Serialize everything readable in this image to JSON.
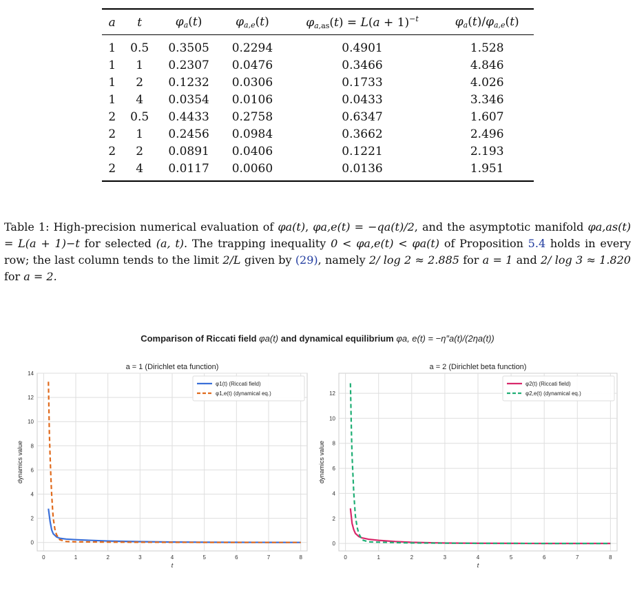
{
  "table": {
    "headers": [
      "a",
      "t",
      "φa(t)",
      "φa,e(t)",
      "φa,as(t) = L(a + 1)−t",
      "φa(t)/φa,e(t)"
    ],
    "rows": [
      [
        "1",
        "0.5",
        "0.3505",
        "0.2294",
        "0.4901",
        "1.528"
      ],
      [
        "1",
        "1",
        "0.2307",
        "0.0476",
        "0.3466",
        "4.846"
      ],
      [
        "1",
        "2",
        "0.1232",
        "0.0306",
        "0.1733",
        "4.026"
      ],
      [
        "1",
        "4",
        "0.0354",
        "0.0106",
        "0.0433",
        "3.346"
      ],
      [
        "2",
        "0.5",
        "0.4433",
        "0.2758",
        "0.6347",
        "1.607"
      ],
      [
        "2",
        "1",
        "0.2456",
        "0.0984",
        "0.3662",
        "2.496"
      ],
      [
        "2",
        "2",
        "0.0891",
        "0.0406",
        "0.1221",
        "2.193"
      ],
      [
        "2",
        "4",
        "0.0117",
        "0.0060",
        "0.0136",
        "1.951"
      ]
    ]
  },
  "caption": {
    "label": "Table 1:",
    "text_1": "High-precision numerical evaluation of",
    "text_2": ", and the asymptotic manifold",
    "text_3": "for selected",
    "text_4": ". The trapping inequality",
    "text_5": "of Proposition",
    "prop_ref": "5.4",
    "text_6": "holds in every row; the last column tends to the limit",
    "text_7": "given by",
    "eq_ref": "(29)",
    "text_8": ", namely",
    "text_9": "for",
    "text_10": "and",
    "text_11": "for",
    "m_phi_a": "φa(t)",
    "m_phi_ae": "φa,e(t) = −qa(t)/2",
    "m_manifold": "φa,as(t) = L(a + 1)−t",
    "m_at": "(a, t)",
    "m_ineq": "0 < φa,e(t) < φa(t)",
    "m_limit": "2/L",
    "m_val1": "2/ log 2 ≈ 2.885",
    "m_a1": "a = 1",
    "m_val2": "2/ log 3 ≈ 1.820",
    "m_a2": "a = 2."
  },
  "figure": {
    "title_prefix": "Comparison of Riccati field",
    "title_mid": "and dynamical equilibrium",
    "title_phi": "φa(t)",
    "title_eq": "φa, e(t) = −η″a(t)/(2ηa(t))"
  },
  "chart_data": [
    {
      "type": "line",
      "title": "a = 1 (Dirichlet eta function)",
      "xlabel": "t",
      "ylabel": "dynamics value",
      "xlim": [
        -0.2,
        8.2
      ],
      "ylim": [
        -0.7,
        14
      ],
      "xticks": [
        0,
        1,
        2,
        3,
        4,
        5,
        6,
        7,
        8
      ],
      "yticks": [
        0,
        2,
        4,
        6,
        8,
        10,
        12,
        14
      ],
      "grid": true,
      "legend_position": "top-right",
      "series": [
        {
          "name": "φ1(t) (Riccati field)",
          "color": "#3a6fd8",
          "style": "solid",
          "x": [
            0.15,
            0.2,
            0.25,
            0.3,
            0.4,
            0.5,
            0.7,
            1,
            1.5,
            2,
            3,
            4,
            5,
            6,
            7,
            8
          ],
          "y": [
            2.8,
            1.75,
            1.05,
            0.72,
            0.46,
            0.35,
            0.28,
            0.23,
            0.17,
            0.12,
            0.07,
            0.035,
            0.02,
            0.01,
            0.006,
            0.003
          ]
        },
        {
          "name": "φ1,e(t) (dynamical eq.)",
          "color": "#e06a1c",
          "style": "dashed",
          "x": [
            0.15,
            0.18,
            0.2,
            0.23,
            0.25,
            0.28,
            0.3,
            0.35,
            0.4,
            0.5,
            0.7,
            1,
            2,
            3,
            4,
            5,
            6,
            7,
            8
          ],
          "y": [
            13.3,
            9.0,
            7.2,
            5.1,
            4.0,
            2.7,
            2.0,
            1.1,
            0.65,
            0.23,
            0.08,
            0.05,
            0.03,
            0.02,
            0.01,
            0.006,
            0.004,
            0.002,
            0.001
          ]
        }
      ]
    },
    {
      "type": "line",
      "title": "a = 2 (Dirichlet beta function)",
      "xlabel": "t",
      "ylabel": "dynamics value",
      "xlim": [
        -0.2,
        8.2
      ],
      "ylim": [
        -0.6,
        13.6
      ],
      "xticks": [
        0,
        1,
        2,
        3,
        4,
        5,
        6,
        7,
        8
      ],
      "yticks": [
        0,
        2,
        4,
        6,
        8,
        10,
        12
      ],
      "grid": true,
      "legend_position": "top-right",
      "series": [
        {
          "name": "φ2(t) (Riccati field)",
          "color": "#d8286a",
          "style": "solid",
          "x": [
            0.15,
            0.2,
            0.25,
            0.3,
            0.4,
            0.5,
            0.7,
            1,
            1.5,
            2,
            3,
            4,
            5,
            6,
            7,
            8
          ],
          "y": [
            2.8,
            1.6,
            1.1,
            0.8,
            0.55,
            0.44,
            0.33,
            0.25,
            0.15,
            0.09,
            0.035,
            0.012,
            0.005,
            0.002,
            0.001,
            0.0005
          ]
        },
        {
          "name": "φ2,e(t) (dynamical eq.)",
          "color": "#1fae74",
          "style": "dashed",
          "x": [
            0.15,
            0.18,
            0.2,
            0.23,
            0.25,
            0.28,
            0.3,
            0.35,
            0.4,
            0.5,
            0.7,
            1,
            2,
            3,
            4,
            5,
            6,
            7,
            8
          ],
          "y": [
            12.8,
            8.8,
            7.0,
            5.2,
            4.1,
            2.9,
            2.2,
            1.3,
            0.8,
            0.28,
            0.12,
            0.1,
            0.04,
            0.02,
            0.006,
            0.003,
            0.002,
            0.001,
            0.001
          ]
        }
      ]
    }
  ]
}
